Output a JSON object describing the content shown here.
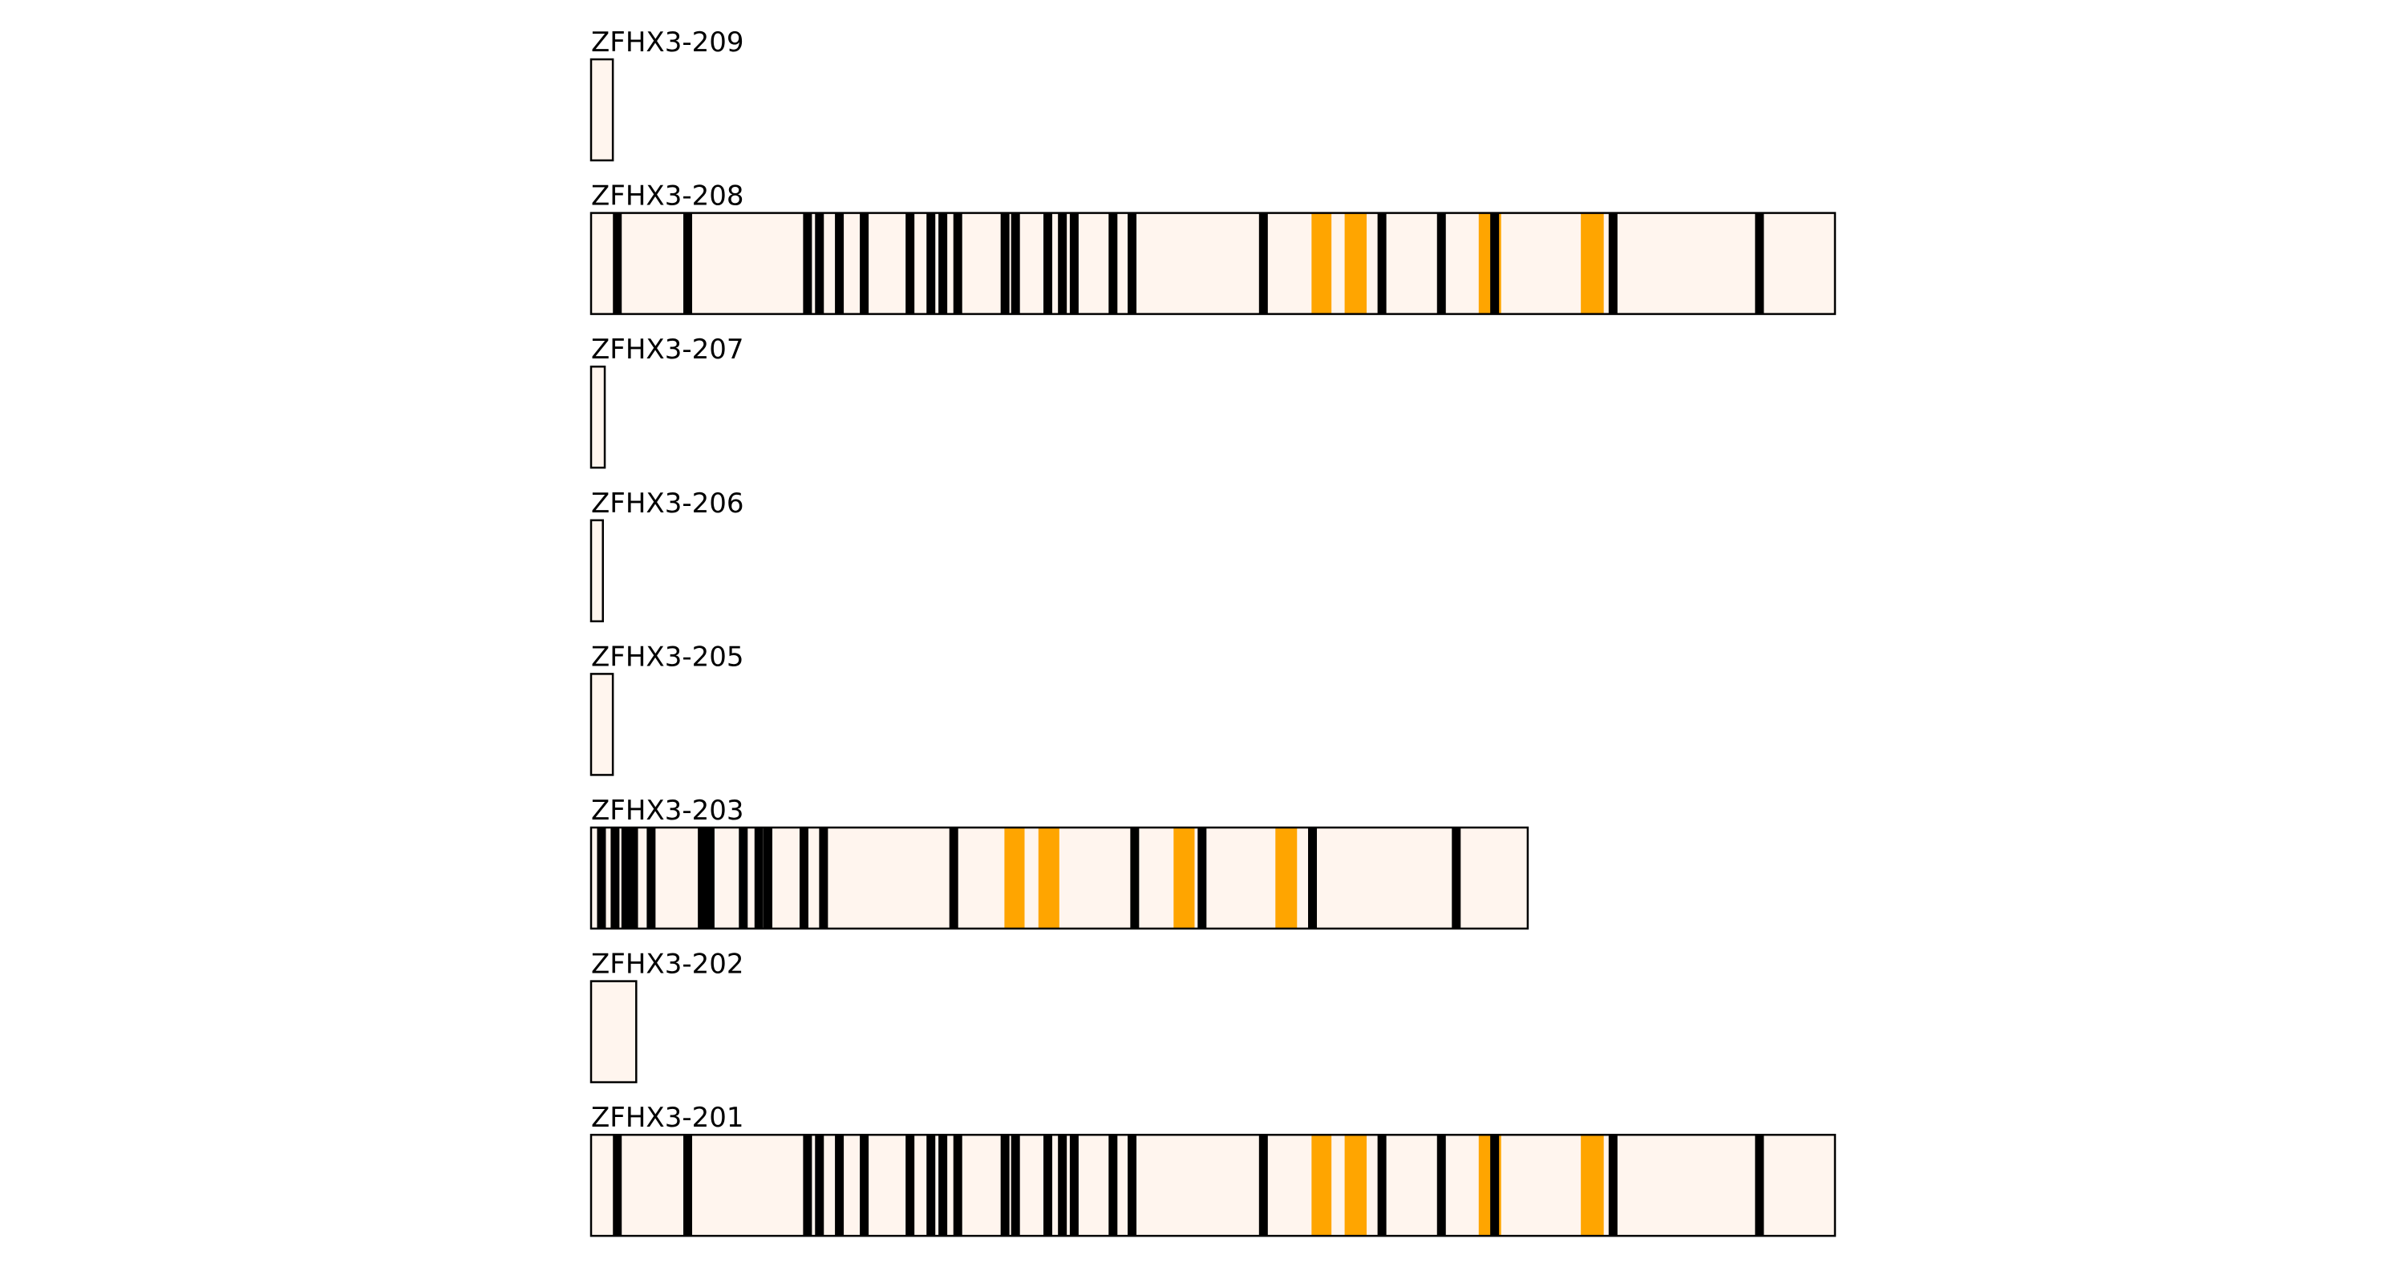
{
  "colors": {
    "background": "#ffffff",
    "transcript_fill": "#fff5ee",
    "transcript_stroke": "#000000",
    "exon_boundary": "#000000",
    "highlight": "#ffa500"
  },
  "transcripts": [
    {
      "label": "ZFHX3-209",
      "relative_length": 0.0175,
      "boundaries": [],
      "highlights": []
    },
    {
      "label": "ZFHX3-208",
      "relative_length": 1.0,
      "boundaries": [
        0.0211,
        0.0777,
        0.174,
        0.1836,
        0.1996,
        0.2196,
        0.2564,
        0.2732,
        0.2828,
        0.2948,
        0.3328,
        0.3412,
        0.3672,
        0.3789,
        0.3884,
        0.4196,
        0.4349,
        0.5405,
        0.6358,
        0.6836,
        0.7264,
        0.8216,
        0.9393
      ],
      "highlights": [
        {
          "start": 0.5792,
          "end": 0.5952
        },
        {
          "start": 0.6058,
          "end": 0.6235
        },
        {
          "start": 0.7136,
          "end": 0.7316
        },
        {
          "start": 0.7957,
          "end": 0.8141
        }
      ]
    },
    {
      "label": "ZFHX3-207",
      "relative_length": 0.011,
      "boundaries": [],
      "highlights": []
    },
    {
      "label": "ZFHX3-206",
      "relative_length": 0.0095,
      "boundaries": [],
      "highlights": []
    },
    {
      "label": "ZFHX3-205",
      "relative_length": 0.0175,
      "boundaries": [],
      "highlights": []
    },
    {
      "label": "ZFHX3-203",
      "relative_length": 0.753,
      "boundaries": [
        0.0111,
        0.0256,
        0.0371,
        0.0454,
        0.0641,
        0.1187,
        0.1271,
        0.1625,
        0.1792,
        0.1888,
        0.2273,
        0.2482,
        0.3872,
        0.5804,
        0.6523,
        0.7702,
        0.9237
      ],
      "highlights": [
        {
          "start": 0.4413,
          "end": 0.4628
        },
        {
          "start": 0.4776,
          "end": 0.4999
        },
        {
          "start": 0.6219,
          "end": 0.6443
        },
        {
          "start": 0.7306,
          "end": 0.7537
        }
      ]
    },
    {
      "label": "ZFHX3-202",
      "relative_length": 0.0363,
      "boundaries": [],
      "highlights": []
    },
    {
      "label": "ZFHX3-201",
      "relative_length": 1.0,
      "boundaries": [
        0.0211,
        0.0777,
        0.174,
        0.1836,
        0.1996,
        0.2196,
        0.2564,
        0.2732,
        0.2828,
        0.2948,
        0.3328,
        0.3412,
        0.3672,
        0.3789,
        0.3884,
        0.4196,
        0.4349,
        0.5405,
        0.6358,
        0.6836,
        0.7264,
        0.8216,
        0.9393
      ],
      "highlights": [
        {
          "start": 0.5792,
          "end": 0.5952
        },
        {
          "start": 0.6058,
          "end": 0.6235
        },
        {
          "start": 0.7136,
          "end": 0.7316
        },
        {
          "start": 0.7957,
          "end": 0.8141
        }
      ]
    }
  ]
}
